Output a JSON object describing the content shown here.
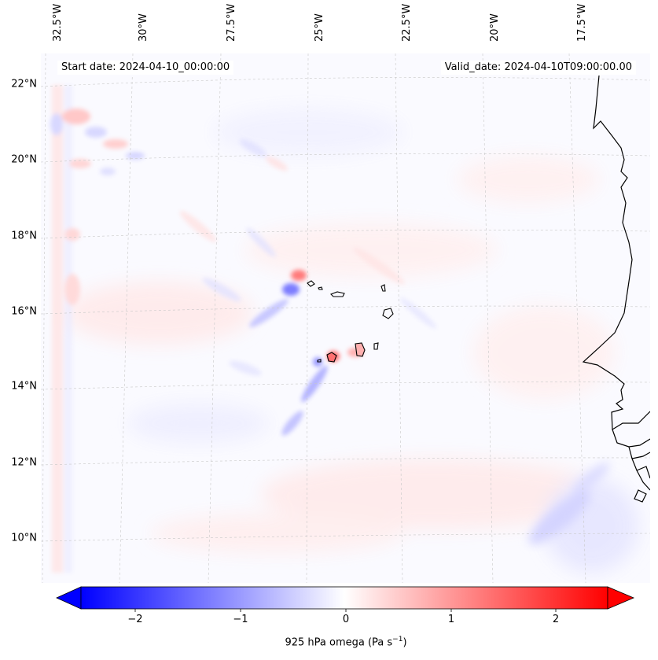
{
  "map": {
    "start_label": "Start date:",
    "start_value": "2024-04-10_00:00:00",
    "valid_label": "Valid_date:",
    "valid_value": "2024-04-10T09:00:00.00",
    "extent": {
      "lon_min": -33.2,
      "lon_max": -15.5,
      "lat_min": 8.9,
      "lat_max": 22.8
    },
    "longitude_ticks": [
      "32.5°W",
      "30°W",
      "27.5°W",
      "25°W",
      "22.5°W",
      "20°W",
      "17.5°W"
    ],
    "latitude_ticks": [
      "22°N",
      "20°N",
      "18°N",
      "16°N",
      "14°N",
      "12°N",
      "10°N"
    ],
    "features": [
      "Cape Verde islands",
      "West African coastline (Senegal, Gambia, Guinea-Bissau)"
    ],
    "colors": {
      "negative": "#0000ff",
      "zero": "#ffffff",
      "positive": "#ff0000",
      "gridline": "#bbbbbb",
      "coastline": "#000000"
    }
  },
  "colorbar": {
    "ticks": [
      "−2",
      "−1",
      "0",
      "1",
      "2"
    ],
    "label": "925 hPa omega (Pa s",
    "label_sup": "−1",
    "label_close": ")",
    "range": [
      -2.6,
      2.6
    ],
    "cmap": "bwr"
  }
}
